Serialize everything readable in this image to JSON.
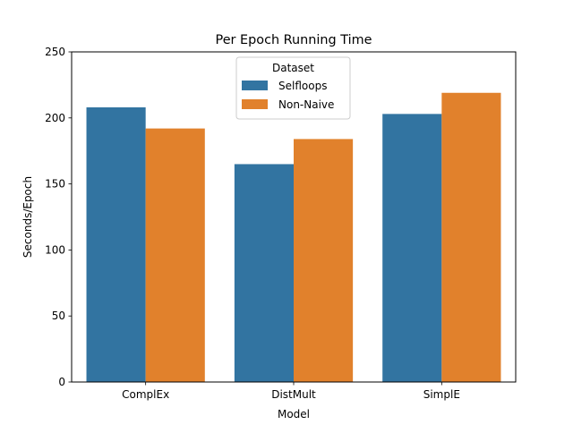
{
  "chart_data": {
    "type": "bar",
    "title": "Per Epoch Running Time",
    "xlabel": "Model",
    "ylabel": "Seconds/Epoch",
    "categories": [
      "ComplEx",
      "DistMult",
      "SimplE"
    ],
    "series": [
      {
        "name": "Selfloops",
        "values": [
          208,
          165,
          203
        ],
        "color": "#3274a1"
      },
      {
        "name": "Non-Naive",
        "values": [
          192,
          184,
          219
        ],
        "color": "#e1812c"
      }
    ],
    "ylim": [
      0,
      250
    ],
    "yticks": [
      0,
      50,
      100,
      150,
      200,
      250
    ],
    "grid": false,
    "legend": {
      "title": "Dataset",
      "placement": "upper center"
    }
  }
}
